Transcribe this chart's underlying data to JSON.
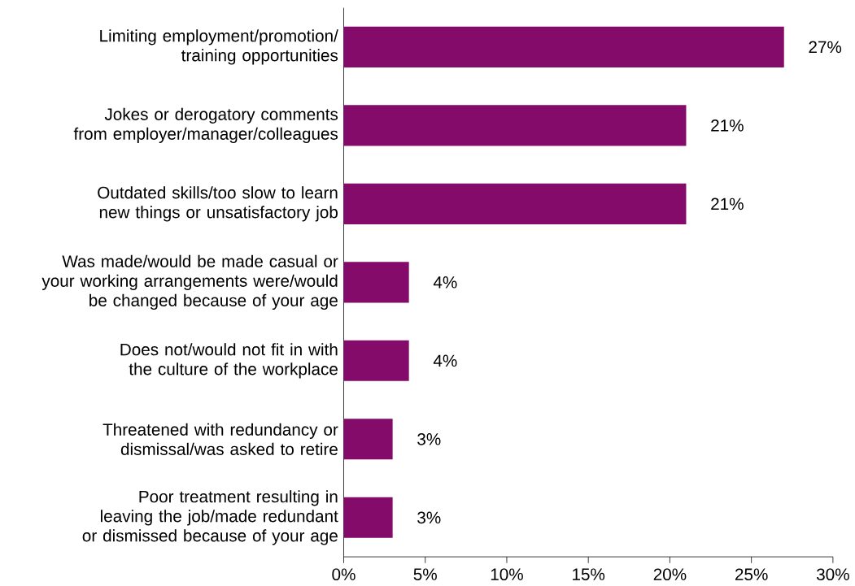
{
  "chart_data": {
    "type": "bar",
    "orientation": "horizontal",
    "categories": [
      "Limiting employment/promotion/ training opportunities",
      "Jokes or derogatory comments from employer/manager/colleagues",
      "Outdated skills/too slow to learn new things or unsatisfactory job",
      "Was made/would be made casual or your working arrangements were/would be changed because of your age",
      "Does not/would not fit in with the culture of the workplace",
      "Threatened with redundancy or dismissal/was asked to retire",
      "Poor treatment resulting in leaving the job/made redundant or dismissed because of your age"
    ],
    "values": [
      27,
      21,
      21,
      4,
      4,
      3,
      3
    ],
    "value_labels": [
      "27%",
      "21%",
      "21%",
      "4%",
      "4%",
      "3%",
      "3%"
    ],
    "color": "#850b6b",
    "xlim": [
      0,
      30
    ],
    "xticks": [
      {
        "value": 0,
        "label": "0%"
      },
      {
        "value": 5,
        "label": "5%"
      },
      {
        "value": 10,
        "label": "10%"
      },
      {
        "value": 15,
        "label": "15%"
      },
      {
        "value": 20,
        "label": "20%"
      },
      {
        "value": 25,
        "label": "25%"
      },
      {
        "value": 30,
        "label": "30%"
      }
    ],
    "grid": false
  }
}
